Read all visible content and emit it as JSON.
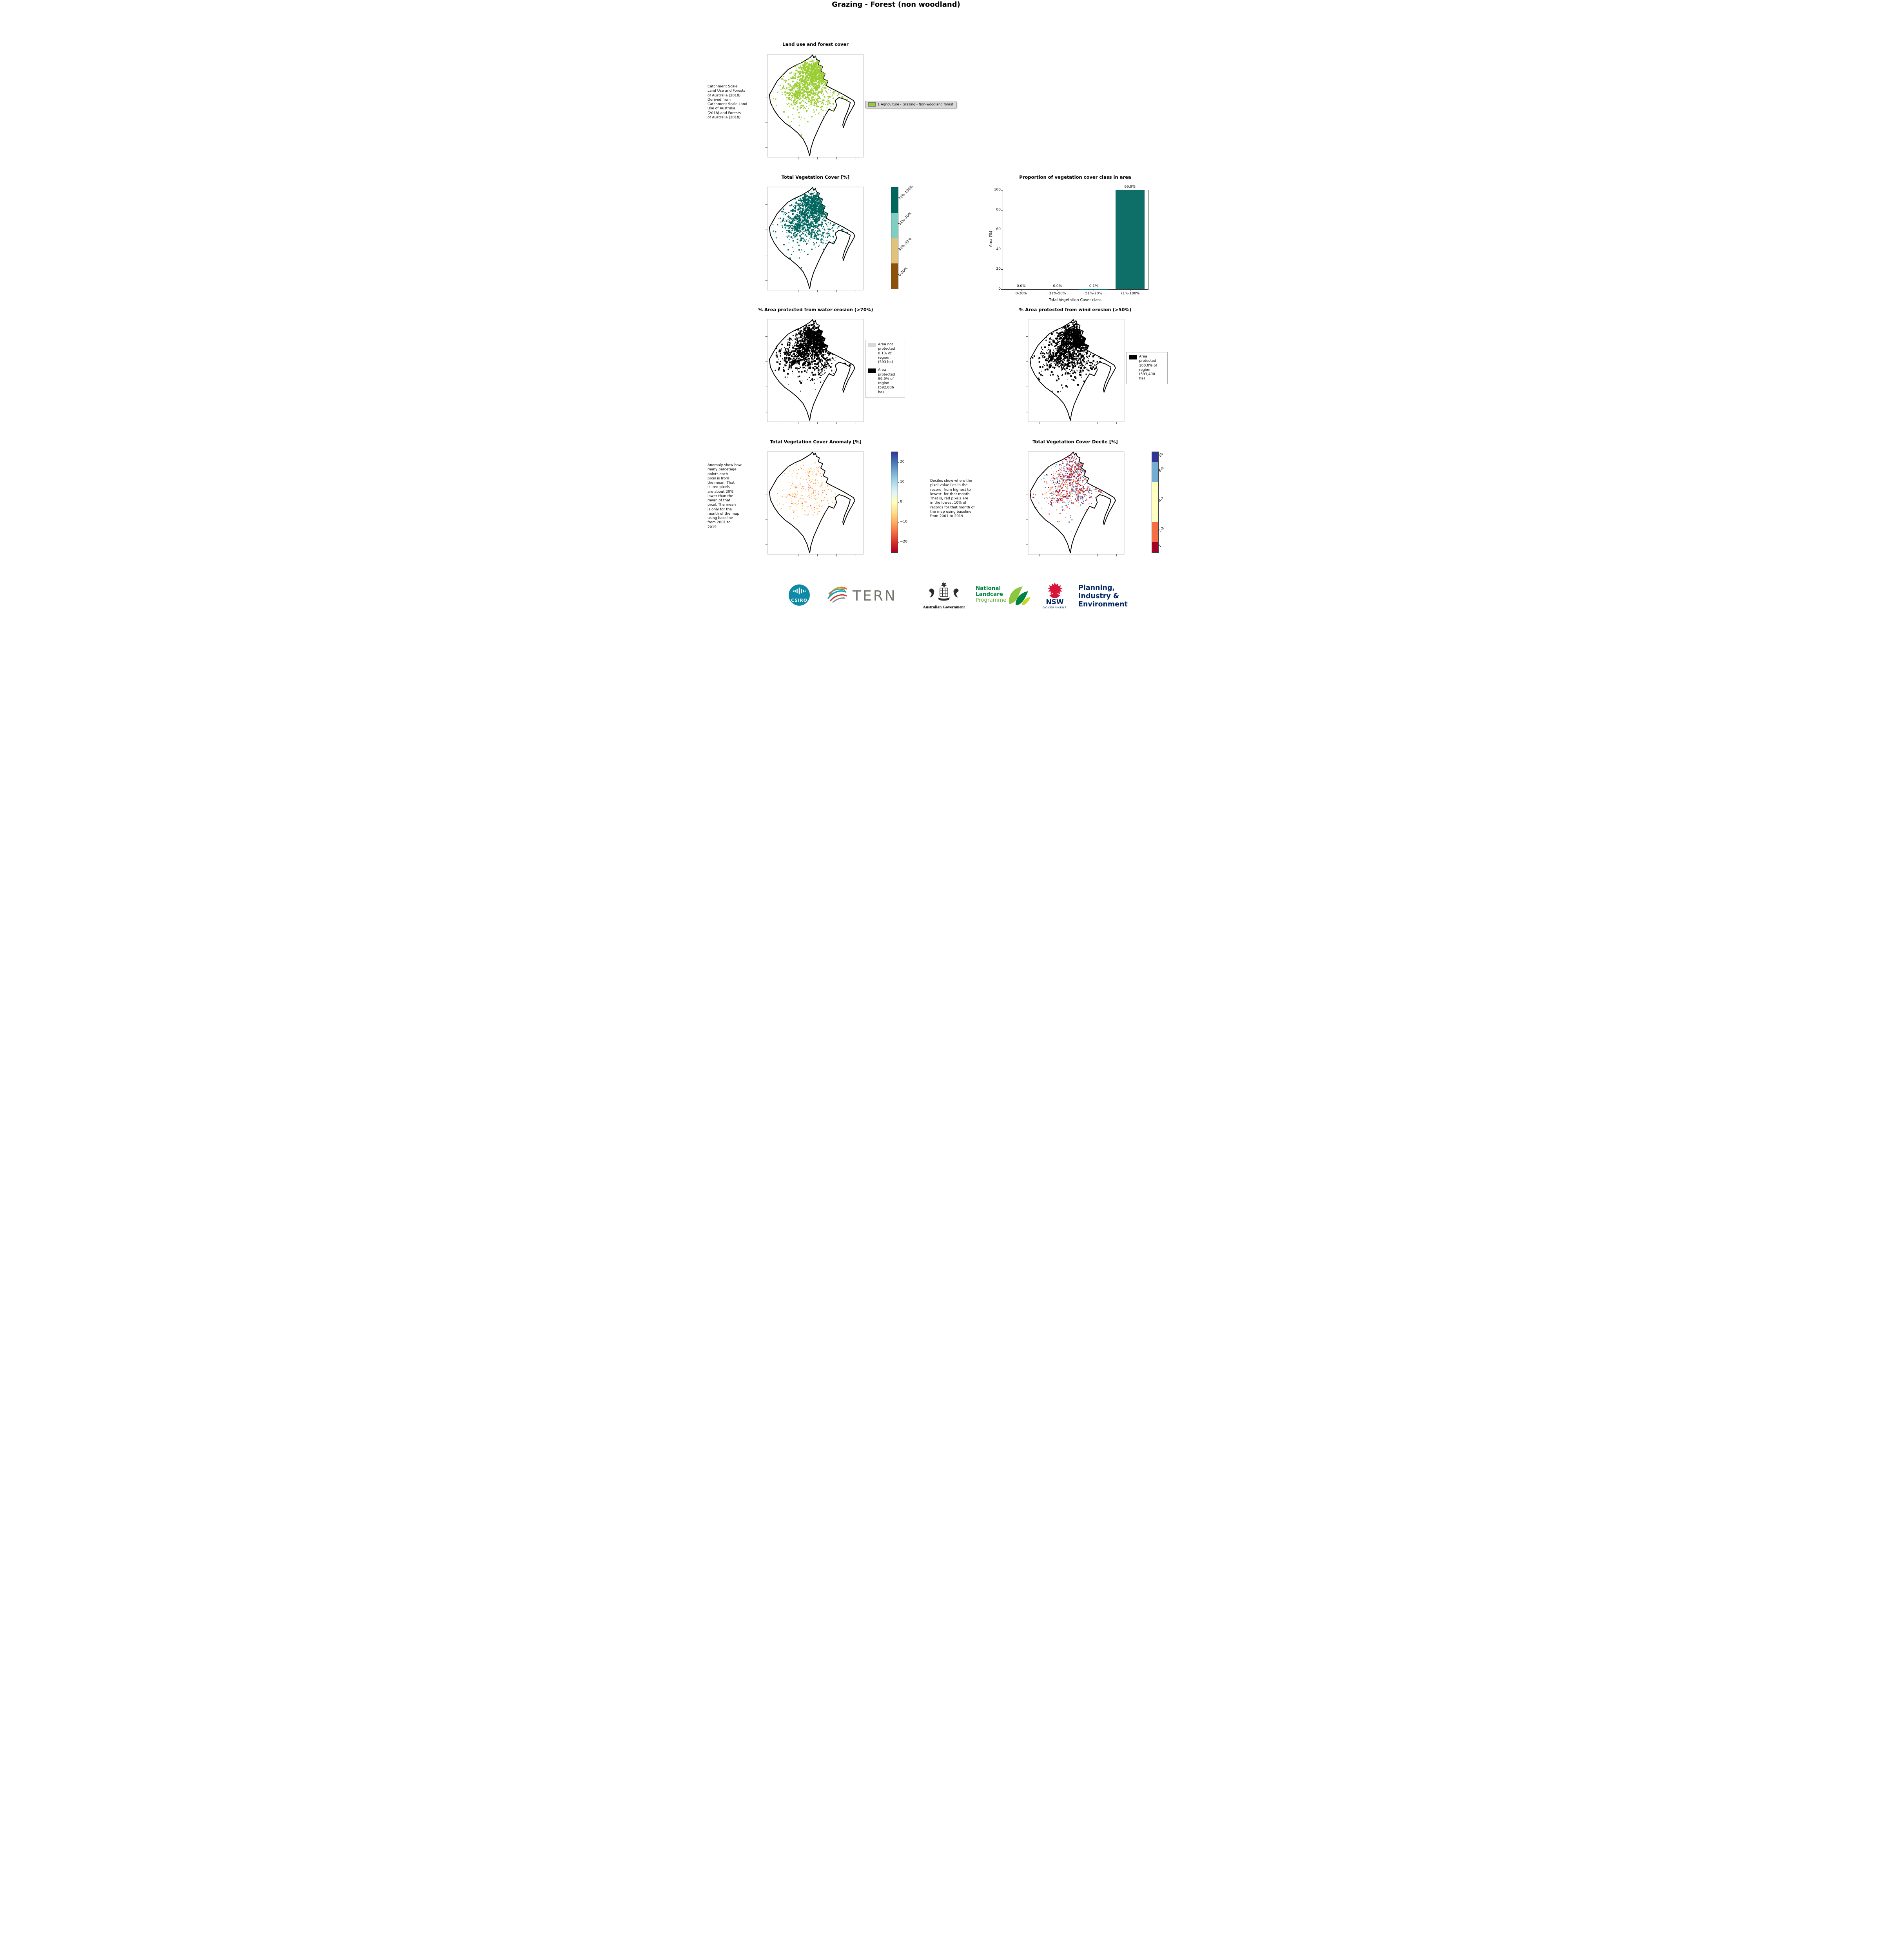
{
  "page": {
    "title": "Grazing - Forest (non woodland)"
  },
  "panels": {
    "landuse": {
      "title": "Land use and forest cover",
      "side_note": "Catchment Scale\nLand Use and Forests\nof Australia (2018)\nDerived from\nCatchment Scale Land\nUse of Australia\n(2018) and Forests\nof Australia (2018)",
      "legend_label": "1 Agriculture - Grazing - Non-woodland forest",
      "legend_color": "#9acd32",
      "dot_colors": [
        {
          "color": "#9acd32",
          "weight": 1
        }
      ]
    },
    "tvc": {
      "title": "Total Vegetation Cover [%]",
      "colorbar": {
        "labels": [
          "71%-100%",
          "51%-70%",
          "31%-50%",
          "0-30%"
        ],
        "colors": [
          "#01665e",
          "#80cdc1",
          "#dfc27d",
          "#8c510a"
        ],
        "heights": [
          25,
          25,
          25,
          25
        ]
      },
      "dot_colors": [
        {
          "color": "#01665e",
          "weight": 1
        }
      ]
    },
    "water": {
      "title": "% Area protected from water erosion (>70%)",
      "legend": [
        {
          "swatch": "#d9d9d9",
          "label": "Area not\nprotected\n0.1% of\nregion\n(593 ha)"
        },
        {
          "swatch": "#000000",
          "label": "Area\nprotected\n99.9% of\nregion\n(592,806\nha)"
        }
      ],
      "dot_colors": [
        {
          "color": "#000000",
          "weight": 1
        }
      ]
    },
    "wind": {
      "title": "% Area protected from wind erosion (>50%)",
      "legend": [
        {
          "swatch": "#000000",
          "label": "Area\nprotected\n100.0% of\nregion\n(593,400\nha)"
        }
      ],
      "dot_colors": [
        {
          "color": "#000000",
          "weight": 1
        }
      ]
    },
    "anomaly": {
      "title": "Total Vegetation Cover Anomaly [%]",
      "note": "Anomaly show how\nmany percetage\npoints each\npixel is from\nthe mean. That\nis, red pixels\nare about 20%\nlower than the\nmean of that\npixel. The mean\nis only for the\nmonth of the map\nusing baseline\nfrom 2001 to\n2019.",
      "colorbar": {
        "stops": [
          "#313695",
          "#4575b4",
          "#74add1",
          "#abd9e9",
          "#e0f3f8",
          "#ffffbf",
          "#fee090",
          "#fdae61",
          "#f46d43",
          "#d73027",
          "#a50026"
        ],
        "ticks": [
          {
            "label": "20",
            "value": 20
          },
          {
            "label": "10",
            "value": 10
          },
          {
            "label": "0",
            "value": 0
          },
          {
            "label": "−10",
            "value": -10
          },
          {
            "label": "−20",
            "value": -20
          }
        ],
        "range": [
          -25,
          25
        ]
      },
      "dot_colors": [
        {
          "color": "#fee08b",
          "weight": 0.45
        },
        {
          "color": "#fdae61",
          "weight": 0.35
        },
        {
          "color": "#f46d43",
          "weight": 0.2
        }
      ]
    },
    "decile": {
      "title": "Total Vegetation Cover Decile [%]",
      "note": "Deciles show where the\npixel value lies in the\nrecord, from highest to\nlowest, for that month.\nThat is, red pixels are\nin the lowest 10% of\nrecords for that month of\nthe map using baseline\nfrom 2001 to 2019.",
      "colorbar": {
        "labels": [
          "10",
          "8-9",
          "4-7",
          "2-3",
          "1"
        ],
        "colors": [
          "#313695",
          "#74add1",
          "#ffffbf",
          "#f46d43",
          "#a50026"
        ],
        "heights": [
          10,
          20,
          40,
          20,
          10
        ]
      },
      "dot_colors": [
        {
          "color": "#a50026",
          "weight": 0.22
        },
        {
          "color": "#d73027",
          "weight": 0.2
        },
        {
          "color": "#f46d43",
          "weight": 0.16
        },
        {
          "color": "#fdae61",
          "weight": 0.08
        },
        {
          "color": "#74add1",
          "weight": 0.12
        },
        {
          "color": "#4575b4",
          "weight": 0.12
        },
        {
          "color": "#313695",
          "weight": 0.1
        }
      ]
    }
  },
  "chart_data": {
    "type": "bar",
    "title": "Proportion of vegetation cover class in area",
    "categories": [
      "0-30%",
      "31%-50%",
      "51%-70%",
      "71%-100%"
    ],
    "values": [
      0.0,
      0.0,
      0.1,
      99.9
    ],
    "value_labels": [
      "0.0%",
      "0.0%",
      "0.1%",
      "99.9%"
    ],
    "xlabel": "Total Vegetation Cover class",
    "ylabel": "Area (%)",
    "ylim": [
      0,
      100
    ],
    "yticks": [
      0,
      20,
      40,
      60,
      80,
      100
    ],
    "bar_color": "#0e6f68",
    "grid": false,
    "legend_position": "none"
  },
  "footer": {
    "csiro": "CSIRO",
    "tern": "TERN",
    "aus_gov": "Australian Government",
    "nlp": [
      "National",
      "Landcare",
      "Programme"
    ],
    "nsw_name": "NSW",
    "nsw_sub": "GOVERNMENT",
    "pie": [
      "Planning,",
      "Industry &",
      "Environment"
    ]
  }
}
